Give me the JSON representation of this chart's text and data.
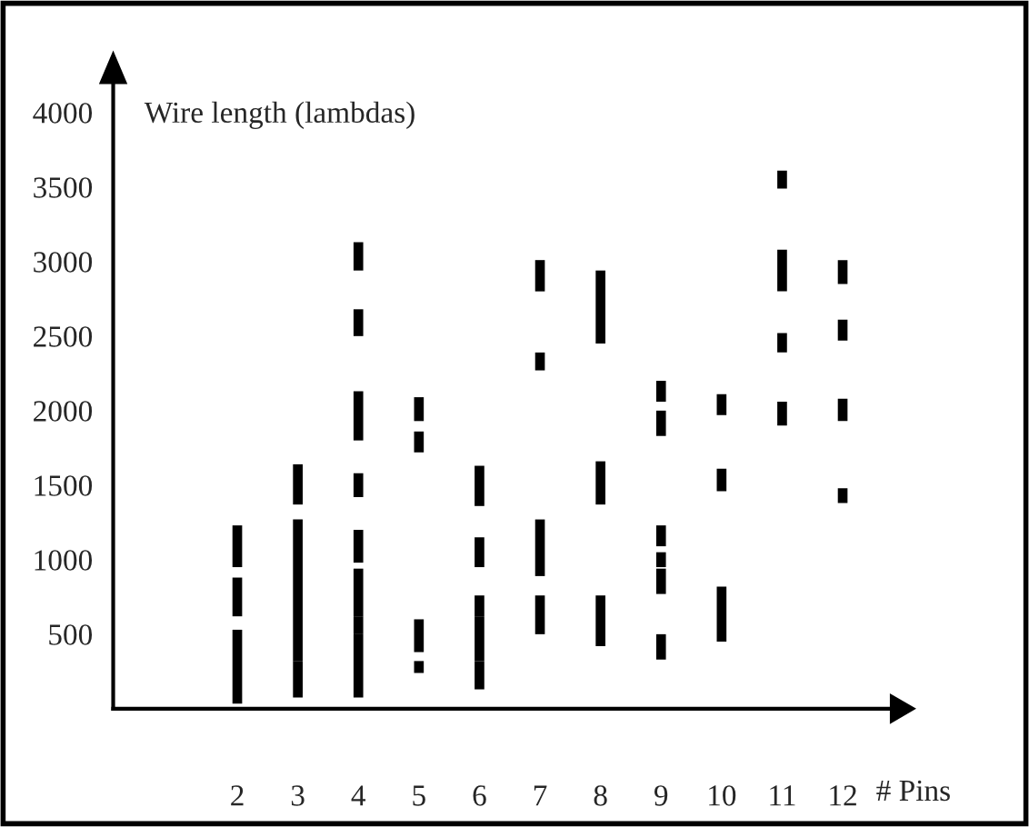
{
  "chart_data": {
    "type": "bar",
    "xlabel": "# Pins",
    "ylabel": "Wire length (lambdas)",
    "categories": [
      "2",
      "3",
      "4",
      "5",
      "6",
      "7",
      "8",
      "9",
      "10",
      "11",
      "12"
    ],
    "series": [
      {
        "color": "#000000",
        "base": [
          35,
          75,
          75,
          240,
          130,
          500,
          420,
          330,
          450,
          1900,
          1380
        ],
        "values": [
          495,
          245,
          425,
          80,
          190,
          260,
          340,
          170,
          370,
          160,
          100
        ]
      },
      {
        "color": "#000000",
        "base": [
          620,
          320,
          500,
          380,
          320,
          890,
          1370,
          770,
          1460,
          2390,
          1930
        ],
        "values": [
          260,
          950,
          120,
          220,
          300,
          380,
          290,
          170,
          150,
          130,
          150
        ]
      },
      {
        "color": "#000000",
        "base": [
          950,
          1370,
          620,
          1720,
          620,
          2270,
          2450,
          950,
          1970,
          2800,
          2470
        ],
        "values": [
          280,
          270,
          320,
          140,
          140,
          120,
          490,
          100,
          140,
          280,
          140
        ]
      },
      {
        "color": "#000000",
        "base": [
          null,
          null,
          980,
          1930,
          950,
          2800,
          null,
          1090,
          null,
          3490,
          2850
        ],
        "values": [
          null,
          null,
          220,
          160,
          200,
          210,
          null,
          140,
          null,
          120,
          160
        ]
      },
      {
        "color": "#000000",
        "base": [
          null,
          null,
          1420,
          null,
          1360,
          null,
          null,
          1830,
          null,
          null,
          null
        ],
        "values": [
          null,
          null,
          160,
          null,
          270,
          null,
          null,
          170,
          null,
          null,
          null
        ]
      },
      {
        "color": "#000000",
        "base": [
          null,
          null,
          1800,
          null,
          null,
          null,
          null,
          2060,
          null,
          null,
          null
        ],
        "values": [
          null,
          null,
          330,
          null,
          null,
          null,
          null,
          140,
          null,
          null,
          null
        ]
      },
      {
        "color": "#000000",
        "base": [
          null,
          null,
          2500,
          null,
          null,
          null,
          null,
          null,
          null,
          null,
          null
        ],
        "values": [
          null,
          null,
          180,
          null,
          null,
          null,
          null,
          null,
          null,
          null,
          null
        ]
      },
      {
        "color": "#000000",
        "base": [
          null,
          null,
          2940,
          null,
          null,
          null,
          null,
          null,
          null,
          null,
          null
        ],
        "values": [
          null,
          null,
          190,
          null,
          null,
          null,
          null,
          null,
          null,
          null,
          null
        ]
      }
    ],
    "ylim": [
      0,
      4200
    ],
    "yticks": [
      500,
      1000,
      1500,
      2000,
      2500,
      3000,
      3500,
      4000
    ],
    "grid": false
  }
}
